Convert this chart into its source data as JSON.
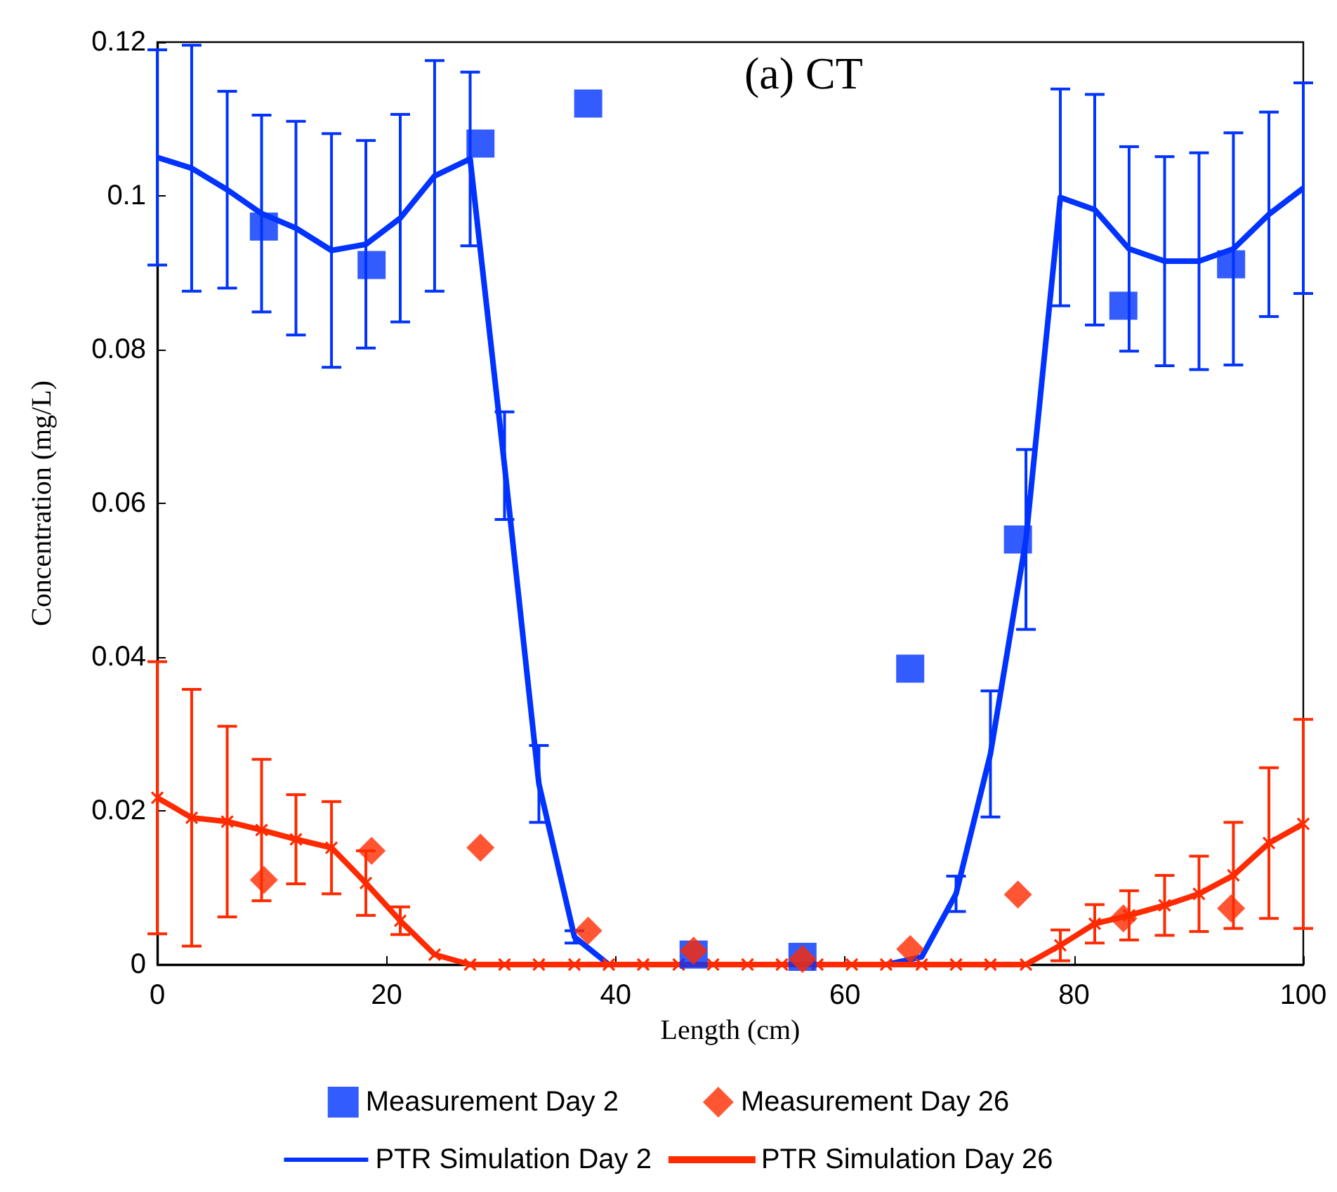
{
  "chart_data": {
    "type": "line",
    "xlabel": "Length (cm)",
    "ylabel": "Concentration (mg/L)",
    "annotations": [
      "(a) CT"
    ],
    "xlim": [
      0,
      100
    ],
    "xticks": [
      0,
      20,
      40,
      60,
      80,
      100
    ],
    "ylim": [
      0,
      0.12
    ],
    "yticks": [
      0,
      0.02,
      0.04,
      0.06,
      0.08,
      0.1,
      0.12
    ],
    "grid": false,
    "legend": "bottom",
    "series": [
      {
        "name": "PTR Simulation Day 2",
        "marker": "none",
        "color": "#0033ff",
        "x": [
          0,
          3.0,
          6.1,
          9.1,
          12.1,
          15.2,
          18.2,
          21.2,
          24.2,
          27.3,
          30.3,
          33.3,
          36.4,
          39.4,
          42.4,
          45.5,
          48.5,
          51.5,
          54.5,
          57.6,
          60.6,
          63.6,
          66.7,
          69.7,
          72.7,
          75.8,
          78.8,
          81.8,
          84.8,
          87.9,
          90.9,
          93.9,
          97.0,
          100
        ],
        "values": [
          0.105,
          0.1036,
          0.1008,
          0.0977,
          0.0958,
          0.0929,
          0.0937,
          0.0971,
          0.1026,
          0.1048,
          0.0649,
          0.0235,
          0.0036,
          0,
          0,
          0,
          0,
          0,
          0,
          0,
          0,
          0,
          0.001,
          0.0092,
          0.0274,
          0.0553,
          0.0998,
          0.0982,
          0.0931,
          0.0915,
          0.0915,
          0.0931,
          0.0976,
          0.101
        ],
        "errors": [
          0.014,
          0.016,
          0.0128,
          0.0128,
          0.0139,
          0.0152,
          0.0135,
          0.0135,
          0.015,
          0.0113,
          0.007,
          0.005,
          0.0008,
          null,
          null,
          null,
          null,
          null,
          null,
          null,
          null,
          null,
          null,
          0.0023,
          0.0082,
          0.0117,
          0.0141,
          0.015,
          0.0133,
          0.0136,
          0.0141,
          0.0151,
          0.0133,
          0.0137
        ]
      },
      {
        "name": "PTR Simulation Day 26",
        "marker": "cross",
        "color": "#ff2a00",
        "x": [
          0,
          3.0,
          6.1,
          9.1,
          12.1,
          15.2,
          18.2,
          21.2,
          24.2,
          27.3,
          30.3,
          33.3,
          36.4,
          39.4,
          42.4,
          45.5,
          48.5,
          51.5,
          54.5,
          57.6,
          60.6,
          63.6,
          66.7,
          69.7,
          72.7,
          75.8,
          78.8,
          81.8,
          84.8,
          87.9,
          90.9,
          93.9,
          97.0,
          100
        ],
        "values": [
          0.0217,
          0.0191,
          0.0186,
          0.0175,
          0.0163,
          0.0152,
          0.0106,
          0.0057,
          0.0013,
          0,
          0,
          0,
          0,
          0,
          0,
          0,
          0,
          0,
          0,
          0,
          0,
          0,
          0,
          0,
          0,
          0,
          0.0025,
          0.0053,
          0.0064,
          0.0077,
          0.0092,
          0.0116,
          0.0158,
          0.0183
        ],
        "errors": [
          0.0177,
          0.0167,
          0.0124,
          0.0092,
          0.0058,
          0.006,
          0.0042,
          0.0018,
          null,
          null,
          null,
          null,
          null,
          null,
          null,
          null,
          null,
          null,
          null,
          null,
          null,
          null,
          null,
          null,
          null,
          null,
          0.002,
          0.0025,
          0.0032,
          0.0039,
          0.0049,
          0.0069,
          0.0098,
          0.0136
        ]
      },
      {
        "name": "Measurement Day 2",
        "type": "scatter",
        "marker": "square",
        "color": "#0033ff",
        "x": [
          9.3,
          18.7,
          28.2,
          37.6,
          46.8,
          56.3,
          65.7,
          75.1,
          84.3,
          93.7
        ],
        "values": [
          0.096,
          0.091,
          0.1068,
          0.112,
          0.0013,
          0.001,
          0.0385,
          0.0553,
          0.0857,
          0.0911
        ]
      },
      {
        "name": "Measurement Day 26",
        "type": "scatter",
        "marker": "diamond",
        "color": "#ff2a00",
        "x": [
          9.3,
          18.7,
          28.2,
          37.6,
          46.8,
          56.3,
          65.7,
          75.1,
          84.3,
          93.7
        ],
        "values": [
          0.011,
          0.0148,
          0.0152,
          0.0044,
          0.0018,
          0.0007,
          0.002,
          0.0091,
          0.006,
          0.0073
        ]
      }
    ]
  }
}
